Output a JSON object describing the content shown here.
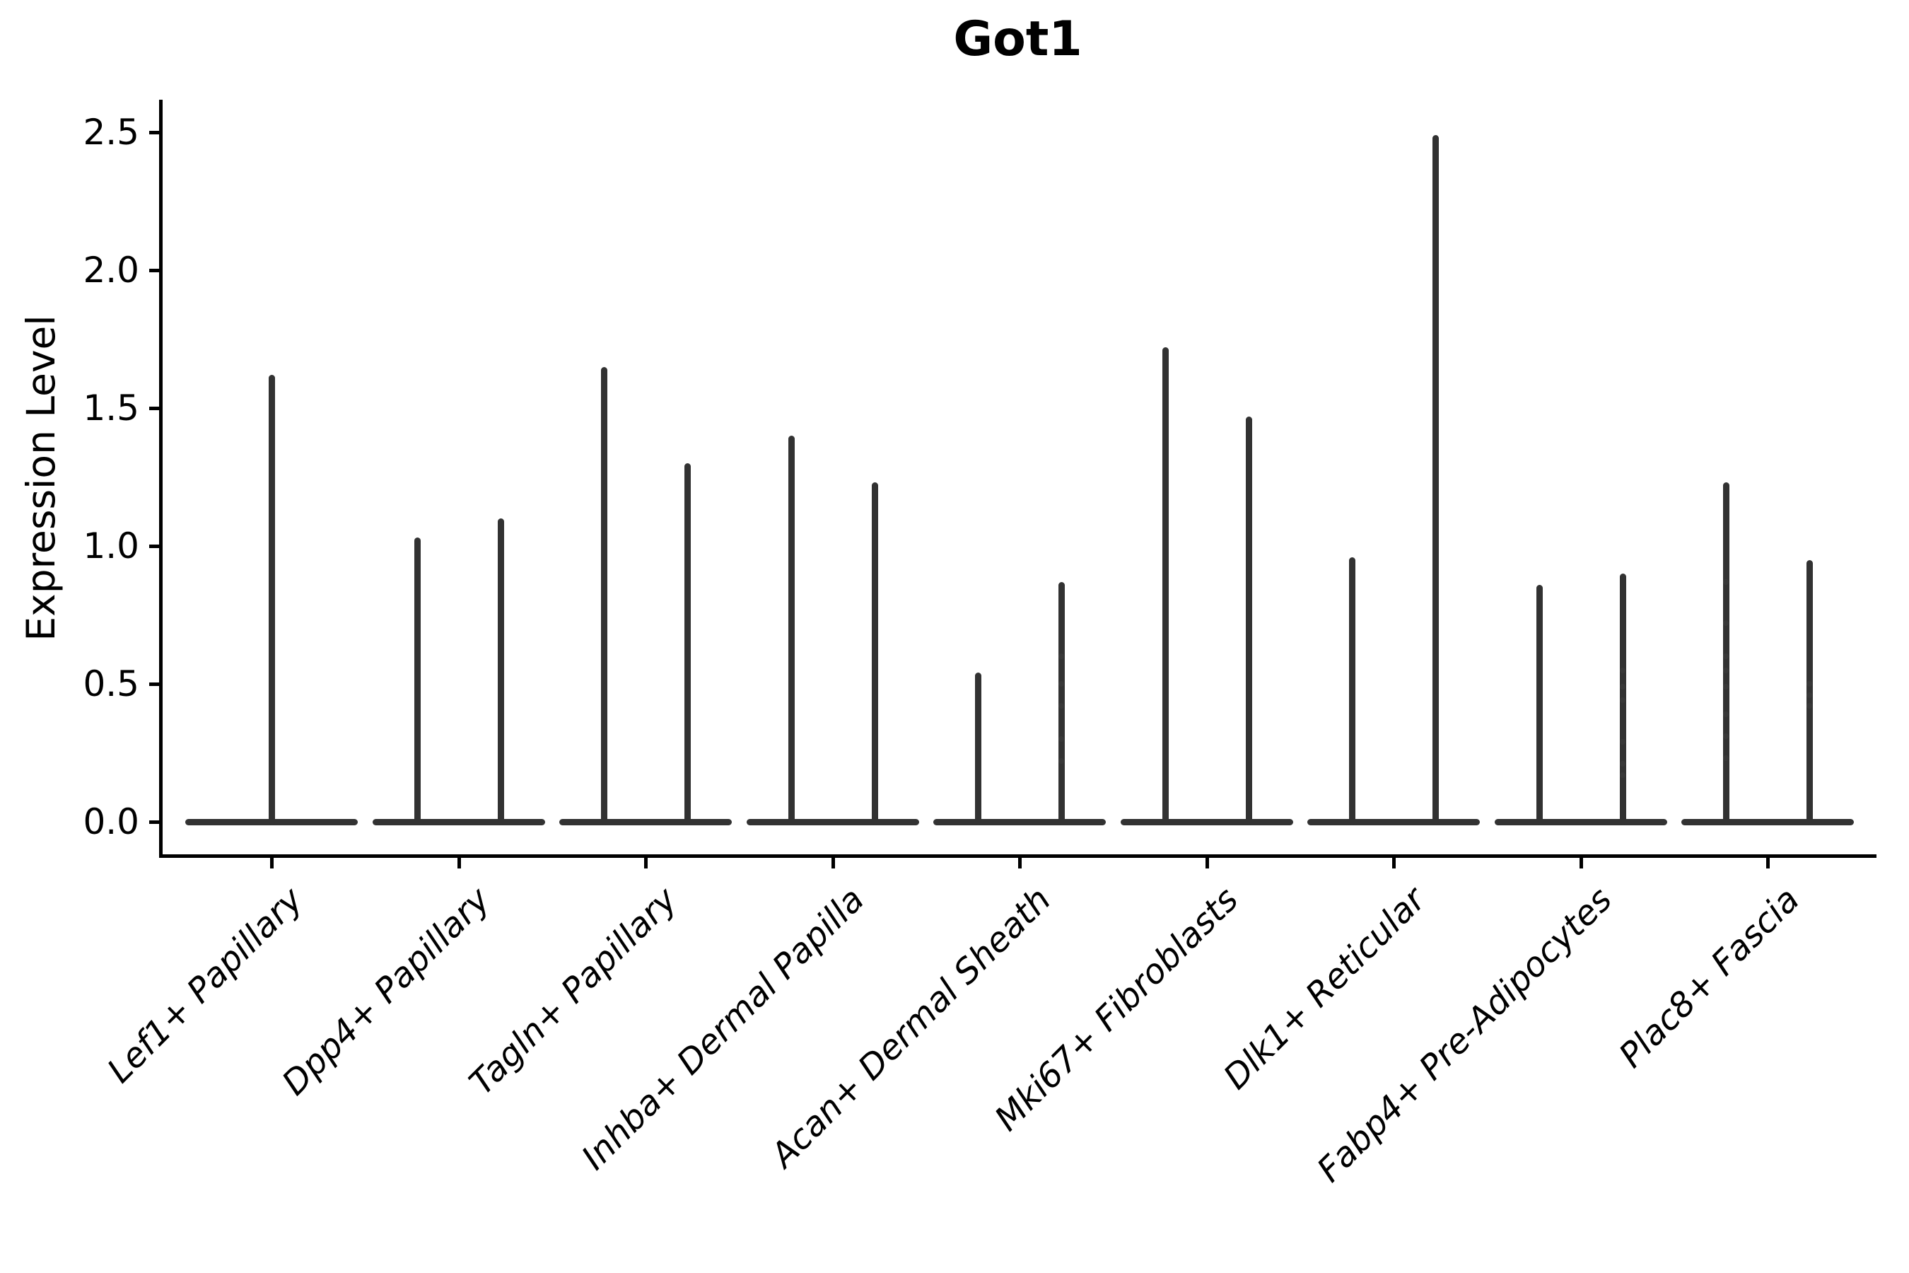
{
  "title": "Got1",
  "chart_data": {
    "type": "violin",
    "title": "Got1",
    "xlabel": "",
    "ylabel": "Expression Level",
    "ylim": [
      -0.12,
      2.62
    ],
    "yticks": [
      0.0,
      0.5,
      1.0,
      1.5,
      2.0,
      2.5
    ],
    "ytick_labels": [
      "0.0",
      "0.5",
      "1.0",
      "1.5",
      "2.0",
      "2.5"
    ],
    "x_tick_rotation": 45,
    "grid": false,
    "legend": "none",
    "categories": [
      "Lef1+ Papillary",
      "Dpp4+ Papillary",
      "Tagln+ Papillary",
      "Inhba+ Dermal Papilla",
      "Acan+ Dermal Sheath",
      "Mki67+ Fibroblasts",
      "Dlk1+ Reticular",
      "Fabp4+ Pre-Adipocytes",
      "Plac8+ Fascia"
    ],
    "violins": [
      {
        "category": "Lef1+ Papillary",
        "position": "center",
        "min": 0.0,
        "max": 1.62,
        "points": []
      },
      {
        "category": "Dpp4+ Papillary",
        "position": "left",
        "min": 0.0,
        "max": 1.03,
        "points": []
      },
      {
        "category": "Dpp4+ Papillary",
        "position": "right",
        "min": 0.0,
        "max": 1.1,
        "points": []
      },
      {
        "category": "Tagln+ Papillary",
        "position": "left",
        "min": 0.0,
        "max": 1.65,
        "points": []
      },
      {
        "category": "Tagln+ Papillary",
        "position": "right",
        "min": 0.0,
        "max": 1.3,
        "points": []
      },
      {
        "category": "Inhba+ Dermal Papilla",
        "position": "left",
        "min": 0.0,
        "max": 1.4,
        "points": []
      },
      {
        "category": "Inhba+ Dermal Papilla",
        "position": "right",
        "min": 0.0,
        "max": 1.23,
        "points": []
      },
      {
        "category": "Acan+ Dermal Sheath",
        "position": "left",
        "min": 0.0,
        "max": 0.54,
        "points": []
      },
      {
        "category": "Acan+ Dermal Sheath",
        "position": "right",
        "min": 0.0,
        "max": 0.87,
        "points": [
          0.6,
          0.5,
          0.42,
          0.3,
          0.22
        ]
      },
      {
        "category": "Mki67+ Fibroblasts",
        "position": "left",
        "min": 0.0,
        "max": 1.72,
        "points": []
      },
      {
        "category": "Mki67+ Fibroblasts",
        "position": "right",
        "min": 0.0,
        "max": 1.47,
        "points": []
      },
      {
        "category": "Dlk1+ Reticular",
        "position": "left",
        "min": 0.0,
        "max": 0.96,
        "points": []
      },
      {
        "category": "Dlk1+ Reticular",
        "position": "right",
        "min": 0.0,
        "max": 2.49,
        "points": []
      },
      {
        "category": "Fabp4+ Pre-Adipocytes",
        "position": "left",
        "min": 0.0,
        "max": 0.86,
        "points": []
      },
      {
        "category": "Fabp4+ Pre-Adipocytes",
        "position": "right",
        "min": 0.0,
        "max": 0.9,
        "points": [
          0.55,
          0.49,
          0.44,
          0.29,
          0.21,
          0.17
        ]
      },
      {
        "category": "Plac8+ Fascia",
        "position": "left",
        "min": 0.0,
        "max": 1.23,
        "points": [
          0.87,
          0.72,
          0.6,
          0.55,
          0.49,
          0.39,
          0.31,
          0.23
        ]
      },
      {
        "category": "Plac8+ Fascia",
        "position": "right",
        "min": 0.0,
        "max": 0.95,
        "points": [
          0.5,
          0.46,
          0.42
        ]
      }
    ],
    "colors": {
      "violin": "#323232",
      "axis": "#000000",
      "background": "#ffffff",
      "jitter_dot": "#3c3c3c"
    }
  }
}
